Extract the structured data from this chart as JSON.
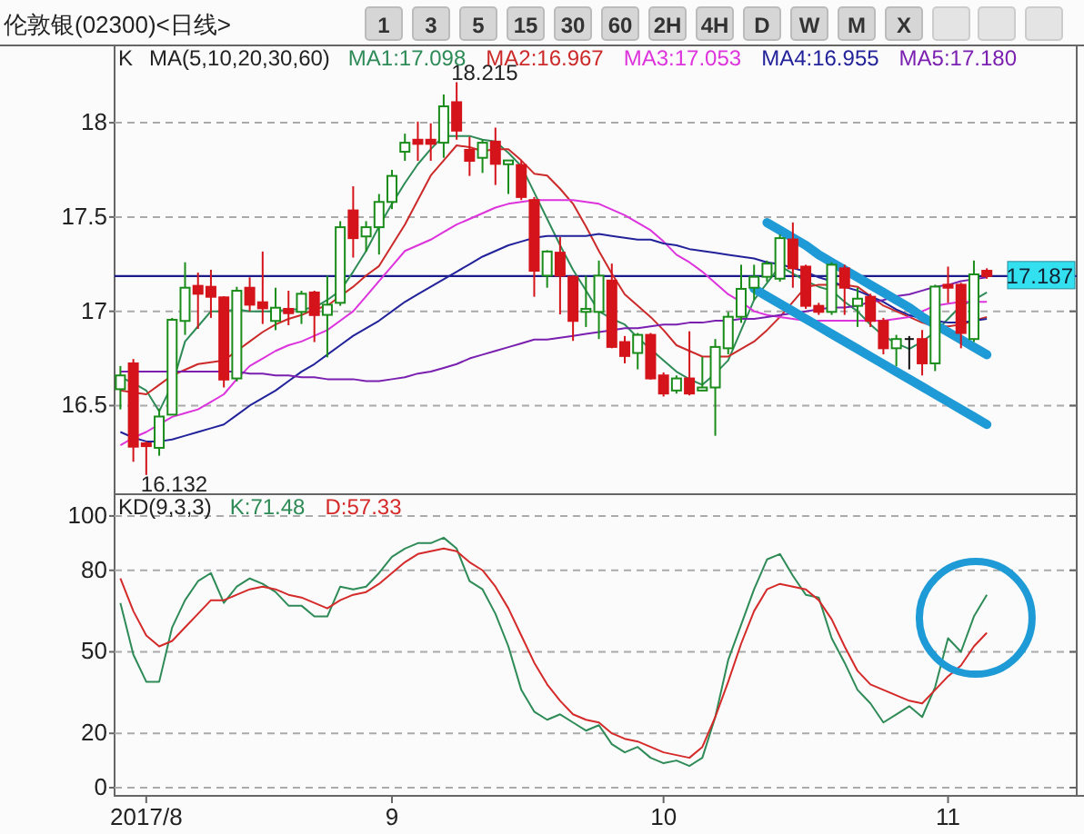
{
  "chart_data": [
    {
      "type": "other",
      "title": "伦敦银(02300)<日线>",
      "annotations": [
        "1",
        "3",
        "5",
        "15",
        "30",
        "60",
        "2H",
        "4H",
        "D",
        "W",
        "M",
        "X"
      ]
    },
    {
      "type": "candlestick",
      "subtitle": "K",
      "legend_title": "MA(5,10,20,30,60)",
      "annotations": [
        "18.215",
        "16.132"
      ],
      "categories": [
        null,
        null,
        "2017/8",
        null,
        null,
        null,
        null,
        null,
        null,
        null,
        null,
        null,
        null,
        null,
        null,
        null,
        null,
        null,
        null,
        null,
        null,
        "9",
        null,
        null,
        null,
        null,
        null,
        null,
        null,
        null,
        null,
        null,
        null,
        null,
        null,
        null,
        null,
        null,
        null,
        null,
        null,
        null,
        "10",
        null,
        null,
        null,
        null,
        null,
        null,
        null,
        null,
        null,
        null,
        null,
        null,
        null,
        null,
        null,
        null,
        null,
        null,
        null,
        null,
        null,
        "11",
        null,
        null,
        null
      ],
      "ohlc": [
        [
          16.587,
          16.71,
          16.48,
          16.66
        ],
        [
          16.724,
          16.747,
          16.202,
          16.282
        ],
        [
          16.3,
          16.31,
          16.132,
          16.285
        ],
        [
          16.276,
          16.484,
          16.234,
          16.442
        ],
        [
          16.452,
          16.965,
          16.45,
          16.955
        ],
        [
          16.949,
          17.26,
          16.875,
          17.125
        ],
        [
          17.135,
          17.205,
          16.907,
          17.093
        ],
        [
          17.13,
          17.22,
          16.965,
          17.077
        ],
        [
          17.074,
          17.08,
          16.596,
          16.638
        ],
        [
          16.644,
          17.13,
          16.628,
          17.109
        ],
        [
          17.125,
          17.18,
          17.0,
          17.035
        ],
        [
          17.048,
          17.317,
          16.933,
          17.016
        ],
        [
          16.949,
          17.125,
          16.9,
          17.019
        ],
        [
          17.013,
          17.109,
          16.926,
          16.99
        ],
        [
          16.997,
          17.109,
          16.933,
          17.093
        ],
        [
          17.1,
          17.109,
          16.837,
          16.98
        ],
        [
          16.981,
          17.189,
          16.756,
          17.035
        ],
        [
          17.045,
          17.478,
          17.029,
          17.446
        ],
        [
          17.535,
          17.663,
          17.285,
          17.388
        ],
        [
          17.397,
          17.478,
          17.317,
          17.446
        ],
        [
          17.446,
          17.622,
          17.301,
          17.58
        ],
        [
          17.58,
          17.75,
          17.542,
          17.718
        ],
        [
          17.846,
          17.942,
          17.798,
          17.894
        ],
        [
          17.91,
          18.006,
          17.798,
          17.888
        ],
        [
          17.91,
          17.997,
          17.798,
          17.888
        ],
        [
          17.894,
          18.15,
          17.814,
          18.087
        ],
        [
          18.109,
          18.215,
          17.91,
          17.958
        ],
        [
          17.856,
          17.926,
          17.718,
          17.798
        ],
        [
          17.814,
          17.91,
          17.734,
          17.894
        ],
        [
          17.9,
          17.974,
          17.67,
          17.782
        ],
        [
          17.78,
          17.8,
          17.622,
          17.8
        ],
        [
          17.776,
          17.798,
          17.59,
          17.606
        ],
        [
          17.59,
          17.606,
          17.077,
          17.215
        ],
        [
          17.189,
          17.324,
          17.125,
          17.317
        ],
        [
          17.311,
          17.394,
          16.984,
          17.189
        ],
        [
          17.183,
          17.19,
          16.843,
          16.949
        ],
        [
          16.997,
          17.189,
          16.917,
          17.013
        ],
        [
          16.997,
          17.269,
          16.853,
          17.189
        ],
        [
          17.163,
          17.253,
          16.804,
          16.811
        ],
        [
          16.837,
          16.869,
          16.724,
          16.763
        ],
        [
          16.779,
          16.885,
          16.692,
          16.875
        ],
        [
          16.875,
          16.885,
          16.638,
          16.644
        ],
        [
          16.66,
          16.676,
          16.548,
          16.564
        ],
        [
          16.58,
          16.66,
          16.564,
          16.644
        ],
        [
          16.644,
          16.894,
          16.554,
          16.564
        ],
        [
          16.58,
          16.757,
          16.577,
          16.596
        ],
        [
          16.596,
          16.853,
          16.34,
          16.811
        ],
        [
          16.804,
          16.997,
          16.772,
          16.971
        ],
        [
          16.971,
          17.247,
          16.939,
          17.119
        ],
        [
          17.125,
          17.247,
          17.061,
          17.183
        ],
        [
          17.183,
          17.269,
          17.157,
          17.253
        ],
        [
          17.173,
          17.407,
          17.157,
          17.388
        ],
        [
          17.381,
          17.471,
          17.125,
          17.228
        ],
        [
          17.237,
          17.247,
          17.013,
          17.029
        ],
        [
          17.029,
          17.045,
          16.981,
          16.997
        ],
        [
          16.997,
          17.26,
          16.981,
          17.247
        ],
        [
          17.228,
          17.247,
          16.981,
          17.125
        ],
        [
          17.029,
          17.125,
          16.917,
          17.067
        ],
        [
          17.077,
          17.093,
          16.917,
          16.949
        ],
        [
          16.949,
          16.965,
          16.772,
          16.804
        ],
        [
          16.804,
          16.875,
          16.708,
          16.853
        ],
        [
          16.853,
          16.869,
          16.692,
          16.853
        ],
        [
          16.853,
          16.901,
          16.66,
          16.724
        ],
        [
          16.724,
          17.141,
          16.683,
          17.131
        ],
        [
          17.141,
          17.237,
          17.045,
          17.125
        ],
        [
          17.141,
          17.151,
          16.804,
          16.885
        ],
        [
          16.853,
          17.269,
          16.837,
          17.196
        ],
        [
          17.215,
          17.228,
          17.173,
          17.187
        ]
      ],
      "series": [
        {
          "type": "line",
          "name": "MA1:17.098",
          "color": "#2e8b57",
          "values": [
            16.65,
            16.62,
            16.58,
            16.47,
            16.61,
            16.84,
            16.92,
            17.0,
            17.0,
            17.01,
            17.0,
            17.0,
            17.0,
            17.01,
            17.01,
            17.02,
            17.06,
            17.11,
            17.21,
            17.32,
            17.45,
            17.57,
            17.68,
            17.78,
            17.86,
            17.93,
            17.93,
            17.93,
            17.91,
            17.9,
            17.84,
            17.77,
            17.63,
            17.49,
            17.35,
            17.22,
            17.11,
            17.0,
            16.96,
            16.93,
            16.86,
            16.8,
            16.74,
            16.68,
            16.64,
            16.61,
            16.67,
            16.74,
            16.9,
            17.06,
            17.15,
            17.24,
            17.2,
            17.16,
            17.13,
            17.11,
            17.05,
            17.0,
            16.93,
            16.87,
            16.83,
            16.8,
            16.84,
            16.89,
            16.96,
            17.03,
            17.06,
            17.1
          ]
        },
        {
          "type": "line",
          "name": "MA2:16.967",
          "color": "#cc2a2a",
          "values": [
            16.58,
            16.57,
            16.56,
            16.61,
            16.66,
            16.69,
            16.72,
            16.73,
            16.74,
            16.79,
            16.84,
            16.89,
            16.93,
            16.96,
            16.98,
            17.01,
            17.03,
            17.08,
            17.13,
            17.19,
            17.24,
            17.35,
            17.46,
            17.59,
            17.72,
            17.8,
            17.88,
            17.87,
            17.85,
            17.86,
            17.86,
            17.8,
            17.73,
            17.72,
            17.65,
            17.57,
            17.45,
            17.32,
            17.2,
            17.09,
            17.03,
            16.97,
            16.9,
            16.82,
            16.79,
            16.76,
            16.76,
            16.76,
            16.8,
            16.84,
            16.9,
            16.97,
            17.05,
            17.13,
            17.14,
            17.14,
            17.14,
            17.13,
            17.08,
            17.03,
            17.0,
            16.97,
            16.94,
            16.92,
            16.92,
            16.93,
            16.95,
            16.97
          ]
        },
        {
          "type": "line",
          "name": "MA3:17.053",
          "color": "#dd33dd",
          "values": [
            16.29,
            16.33,
            16.36,
            16.4,
            16.44,
            16.46,
            16.48,
            16.52,
            16.56,
            16.64,
            16.71,
            16.75,
            16.79,
            16.82,
            16.84,
            16.87,
            16.9,
            16.95,
            17.0,
            17.08,
            17.16,
            17.24,
            17.32,
            17.35,
            17.38,
            17.42,
            17.46,
            17.49,
            17.52,
            17.55,
            17.57,
            17.58,
            17.59,
            17.59,
            17.59,
            17.59,
            17.58,
            17.57,
            17.54,
            17.51,
            17.47,
            17.43,
            17.37,
            17.3,
            17.26,
            17.21,
            17.15,
            17.09,
            17.05,
            17.0,
            16.98,
            16.97,
            16.96,
            16.95,
            16.95,
            16.95,
            16.95,
            16.95,
            16.95,
            16.95,
            16.96,
            16.97,
            17.0,
            17.03,
            17.04,
            17.05,
            17.05,
            17.05
          ]
        },
        {
          "type": "line",
          "name": "MA4:16.955",
          "color": "#22229a",
          "values": [
            16.36,
            16.33,
            16.31,
            16.31,
            16.32,
            16.34,
            16.36,
            16.38,
            16.4,
            16.45,
            16.5,
            16.54,
            16.58,
            16.63,
            16.68,
            16.72,
            16.77,
            16.82,
            16.87,
            16.91,
            16.95,
            17.0,
            17.05,
            17.09,
            17.13,
            17.17,
            17.21,
            17.25,
            17.29,
            17.32,
            17.35,
            17.37,
            17.39,
            17.4,
            17.4,
            17.4,
            17.4,
            17.41,
            17.4,
            17.39,
            17.38,
            17.38,
            17.36,
            17.35,
            17.33,
            17.32,
            17.31,
            17.3,
            17.29,
            17.28,
            17.26,
            17.25,
            17.23,
            17.21,
            17.18,
            17.16,
            17.13,
            17.11,
            17.08,
            17.05,
            17.01,
            16.98,
            16.96,
            16.95,
            16.94,
            16.94,
            16.95,
            16.96
          ]
        },
        {
          "type": "line",
          "name": "MA5:17.180",
          "color": "#7a1fb0",
          "values": [
            16.68,
            16.68,
            16.68,
            16.68,
            16.68,
            16.68,
            16.68,
            16.68,
            16.68,
            16.68,
            16.67,
            16.67,
            16.66,
            16.66,
            16.65,
            16.65,
            16.64,
            16.64,
            16.64,
            16.63,
            16.63,
            16.64,
            16.65,
            16.67,
            16.68,
            16.7,
            16.72,
            16.75,
            16.77,
            16.79,
            16.81,
            16.83,
            16.85,
            16.85,
            16.86,
            16.87,
            16.88,
            16.89,
            16.9,
            16.91,
            16.91,
            16.92,
            16.93,
            16.93,
            16.94,
            16.94,
            16.95,
            16.95,
            16.96,
            16.96,
            16.97,
            16.98,
            16.99,
            17.0,
            17.01,
            17.02,
            17.02,
            17.03,
            17.05,
            17.06,
            17.08,
            17.09,
            17.11,
            17.13,
            17.14,
            17.16,
            17.17,
            17.18
          ]
        },
        {
          "type": "line",
          "color": "#1e9ad6",
          "values": [
            null,
            null,
            null,
            null,
            null,
            null,
            null,
            null,
            null,
            null,
            null,
            null,
            null,
            null,
            null,
            null,
            null,
            null,
            null,
            null,
            null,
            null,
            null,
            null,
            null,
            null,
            null,
            null,
            null,
            null,
            null,
            null,
            null,
            null,
            null,
            null,
            null,
            null,
            null,
            null,
            null,
            null,
            null,
            null,
            null,
            null,
            null,
            null,
            null,
            null,
            17.47,
            17.43,
            17.39,
            17.35,
            17.3,
            17.26,
            17.22,
            17.18,
            17.14,
            17.1,
            17.06,
            17.02,
            16.97,
            16.93,
            16.89,
            16.85,
            16.81,
            16.77
          ]
        },
        {
          "type": "line",
          "color": "#1e9ad6",
          "values": [
            null,
            null,
            null,
            null,
            null,
            null,
            null,
            null,
            null,
            null,
            null,
            null,
            null,
            null,
            null,
            null,
            null,
            null,
            null,
            null,
            null,
            null,
            null,
            null,
            null,
            null,
            null,
            null,
            null,
            null,
            null,
            null,
            null,
            null,
            null,
            null,
            null,
            null,
            null,
            null,
            null,
            null,
            null,
            null,
            null,
            null,
            null,
            null,
            null,
            17.12,
            17.08,
            17.04,
            17.0,
            16.96,
            16.92,
            16.88,
            16.84,
            16.8,
            16.76,
            16.72,
            16.68,
            16.64,
            16.6,
            16.56,
            16.52,
            16.48,
            16.44,
            16.4
          ]
        }
      ],
      "ref_lines": [
        {
          "axis": "y",
          "value": 17.187,
          "label": "17.187",
          "color": "#1a1a8a"
        }
      ],
      "ylim": [
        16.03,
        18.41
      ],
      "yticks": [
        16.5,
        17,
        17.5,
        18
      ],
      "grid": "y",
      "legend": "top",
      "tick_labels": "y"
    },
    {
      "type": "line",
      "legend_title": "KD(9,3,3)",
      "categories": [
        null,
        null,
        "2017/8",
        null,
        null,
        null,
        null,
        null,
        null,
        null,
        null,
        null,
        null,
        null,
        null,
        null,
        null,
        null,
        null,
        null,
        null,
        "9",
        null,
        null,
        null,
        null,
        null,
        null,
        null,
        null,
        null,
        null,
        null,
        null,
        null,
        null,
        null,
        null,
        null,
        null,
        null,
        null,
        "10",
        null,
        null,
        null,
        null,
        null,
        null,
        null,
        null,
        null,
        null,
        null,
        null,
        null,
        null,
        null,
        null,
        null,
        null,
        null,
        null,
        null,
        "11",
        null,
        null,
        null
      ],
      "series": [
        {
          "name": "K:71.48",
          "color": "#2e8b57",
          "values": [
            68,
            49,
            39,
            39,
            59,
            69,
            76,
            79,
            68,
            74,
            77,
            75,
            72,
            67,
            67,
            63,
            63,
            74,
            73,
            74,
            79,
            85,
            88,
            90,
            90,
            92,
            88,
            76,
            73,
            64,
            52,
            36,
            28,
            25,
            27,
            24,
            21,
            23,
            16,
            13,
            15,
            11,
            9,
            10,
            8,
            11,
            26,
            47,
            60,
            73,
            84,
            86,
            78,
            71,
            70,
            55,
            46,
            36,
            31,
            24,
            27,
            30,
            26,
            37,
            55,
            50,
            63,
            71
          ]
        },
        {
          "name": "D:57.33",
          "color": "#d42a2a",
          "values": [
            77,
            65,
            56,
            52,
            54,
            59,
            64,
            69,
            69,
            71,
            73,
            74,
            73,
            71,
            70,
            68,
            66,
            69,
            71,
            72,
            75,
            79,
            83,
            86,
            87,
            88,
            87,
            83,
            80,
            74,
            66,
            56,
            46,
            38,
            32,
            27,
            25,
            24,
            20,
            18,
            17,
            15,
            13,
            12,
            11,
            15,
            26,
            39,
            53,
            65,
            73,
            75,
            74,
            73,
            69,
            62,
            52,
            43,
            38,
            36,
            34,
            32,
            31,
            36,
            41,
            45,
            52,
            57
          ]
        }
      ],
      "ylim": [
        -3,
        108
      ],
      "yticks": [
        0,
        20,
        50,
        80,
        100
      ],
      "grid": "y",
      "legend": "top"
    }
  ]
}
